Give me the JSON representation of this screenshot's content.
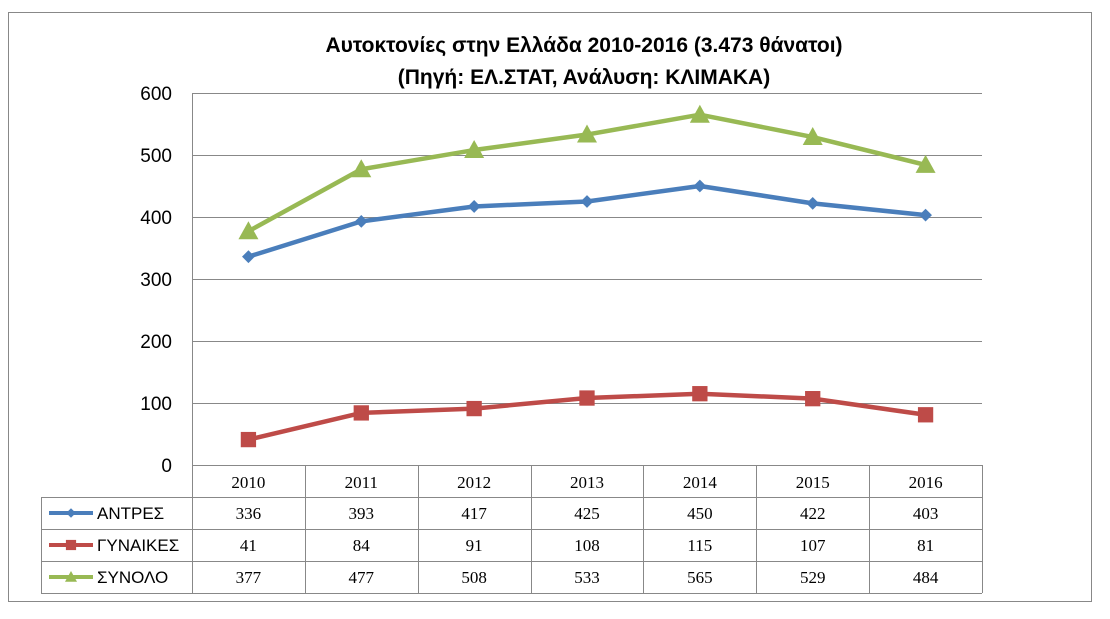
{
  "chart_data": {
    "type": "line",
    "title": "Αυτοκτονίες στην Ελλάδα 2010-2016 (3.473 θάνατοι)",
    "subtitle": "(Πηγή: ΕΛ.ΣΤΑΤ, Ανάλυση: ΚΛΙΜΑΚΑ)",
    "xlabel": "",
    "ylabel": "",
    "categories": [
      "2010",
      "2011",
      "2012",
      "2013",
      "2014",
      "2015",
      "2016"
    ],
    "ylim": [
      0,
      600
    ],
    "yticks": [
      0,
      100,
      200,
      300,
      400,
      500,
      600
    ],
    "grid": true,
    "legend": "data-table",
    "series": [
      {
        "name": "ΑΝΤΡΕΣ",
        "color": "#4a7ebb",
        "marker": "diamond",
        "values": [
          336,
          393,
          417,
          425,
          450,
          422,
          403
        ]
      },
      {
        "name": "ΓΥΝΑΙΚΕΣ",
        "color": "#be4b48",
        "marker": "square",
        "values": [
          41,
          84,
          91,
          108,
          115,
          107,
          81
        ]
      },
      {
        "name": "ΣΥΝΟΛΟ",
        "color": "#98b954",
        "marker": "triangle",
        "values": [
          377,
          477,
          508,
          533,
          565,
          529,
          484
        ]
      }
    ]
  }
}
